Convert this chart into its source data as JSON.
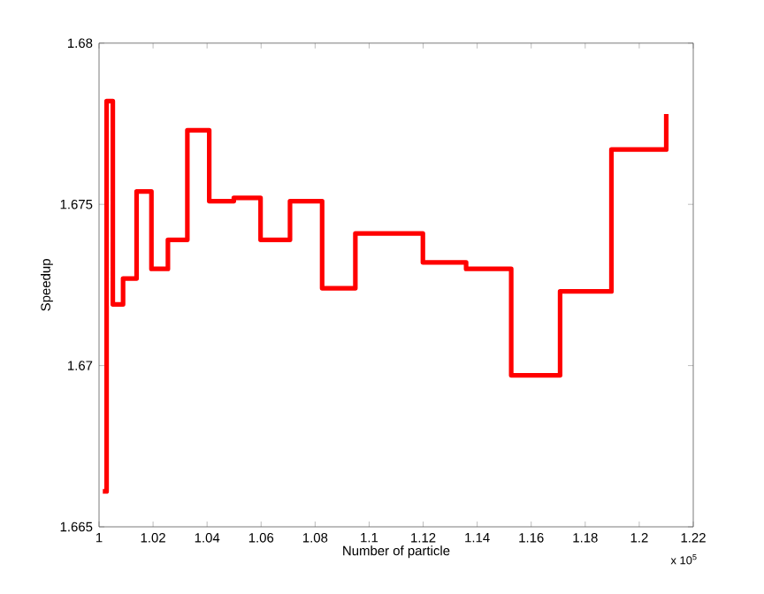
{
  "chart_data": {
    "type": "step",
    "xlabel": "Number of particle",
    "ylabel": "Speedup",
    "annotations": [
      "x 10$^{5}$"
    ],
    "x": [
      1.0014,
      1.0028,
      1.0051,
      1.0089,
      1.0139,
      1.0194,
      1.0255,
      1.0327,
      1.0408,
      1.0499,
      1.0598,
      1.0707,
      1.0826,
      1.0949,
      1.1199,
      1.1359,
      1.1526,
      1.1707,
      1.1897,
      1.21
    ],
    "series": [
      {
        "color": "#ff0000",
        "values": [
          1.6661,
          1.6782,
          1.6719,
          1.6727,
          1.6754,
          1.673,
          1.6739,
          1.6773,
          1.6751,
          1.6752,
          1.6739,
          1.6751,
          1.6724,
          1.6741,
          1.6732,
          1.673,
          1.6697,
          1.6723,
          1.6767,
          1.6778
        ]
      }
    ],
    "xlim": [
      1.0,
      1.22
    ],
    "ylim": [
      1.665,
      1.68
    ],
    "xticks": [
      1,
      1.02,
      1.04,
      1.06,
      1.08,
      1.1,
      1.12,
      1.14,
      1.16,
      1.18,
      1.2,
      1.22
    ],
    "yticks": [
      1.665,
      1.67,
      1.675,
      1.68
    ],
    "grid": false,
    "marker": "none",
    "line_style": "solid"
  }
}
